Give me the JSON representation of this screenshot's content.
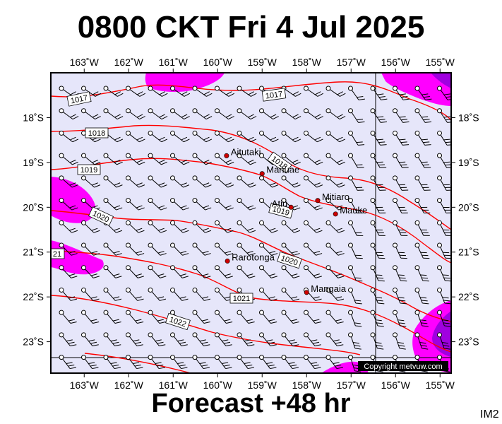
{
  "title": "0800 CKT Fri 4 Jul 2025",
  "subtitle": "Forecast +48 hr",
  "map_code": "IM2",
  "copyright": "Copyright metvuw.com",
  "colors": {
    "sea": "#e6e6fa",
    "strong_wind": "#ff00ff",
    "storm_wind": "#a000e0",
    "isobar": "#ff0000",
    "town": "#cc0000"
  },
  "axes": {
    "lon_ticks": [
      "163˚W",
      "162˚W",
      "161˚W",
      "160˚W",
      "159˚W",
      "158˚W",
      "157˚W",
      "156˚W",
      "155˚W"
    ],
    "lat_ticks": [
      "18˚S",
      "19˚S",
      "20˚S",
      "21˚S",
      "22˚S",
      "23˚S"
    ],
    "lon_range": [
      -163.75,
      -154.75
    ],
    "lat_range": [
      -17.0,
      -23.7
    ]
  },
  "towns": [
    {
      "name": "Aitutaki",
      "lon": -159.8,
      "lat": -18.85
    },
    {
      "name": "Manuae",
      "lon": -159.0,
      "lat": -19.25
    },
    {
      "name": "Atiu",
      "lon": -158.35,
      "lat": -20.0
    },
    {
      "name": "Mitiaro",
      "lon": -157.75,
      "lat": -19.85
    },
    {
      "name": "Mauke",
      "lon": -157.35,
      "lat": -20.15
    },
    {
      "name": "Rarotonga",
      "lon": -159.78,
      "lat": -21.2
    },
    {
      "name": "Mangaia",
      "lon": -158.0,
      "lat": -21.9
    }
  ],
  "isobars": [
    {
      "label": "1017",
      "pressure": 1017
    },
    {
      "label": "1017",
      "pressure": 1017
    },
    {
      "label": "1018",
      "pressure": 1018
    },
    {
      "label": "1018",
      "pressure": 1018
    },
    {
      "label": "1019",
      "pressure": 1019
    },
    {
      "label": "1019",
      "pressure": 1019
    },
    {
      "label": "1020",
      "pressure": 1020
    },
    {
      "label": "1020",
      "pressure": 1020
    },
    {
      "label": "21",
      "pressure": 1021
    },
    {
      "label": "1021",
      "pressure": 1021
    },
    {
      "label": "1022",
      "pressure": 1022
    }
  ]
}
